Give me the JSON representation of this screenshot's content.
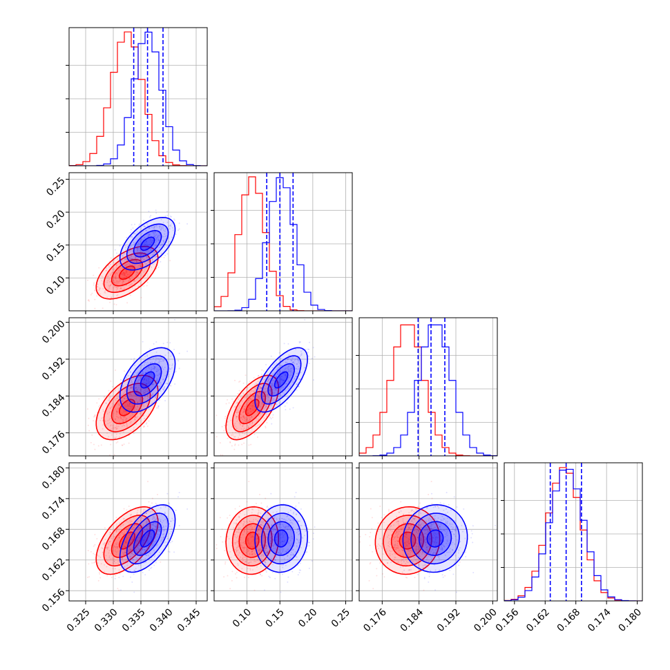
{
  "colors": {
    "red": "#ff0000",
    "blue": "#0000ff",
    "grid": "#b0b0b0",
    "frame": "#000000"
  },
  "chart_data": {
    "type": "corner",
    "parameters": 4,
    "grid": true,
    "samples": [
      {
        "color": "#ff0000",
        "mean": [
          0.3325,
          0.108,
          0.1815,
          0.1658
        ],
        "sd": [
          0.0028,
          0.02,
          0.0035,
          0.0033
        ],
        "corr": [
          [
            1,
            0.55,
            0.5,
            0.55
          ],
          [
            0.55,
            1,
            0.6,
            0.05
          ],
          [
            0.5,
            0.6,
            1,
            0.05
          ],
          [
            0.55,
            0.05,
            0.05,
            1
          ]
        ]
      },
      {
        "color": "#0000ff",
        "mean": [
          0.3362,
          0.152,
          0.1875,
          0.1662
        ],
        "sd": [
          0.0025,
          0.02,
          0.0035,
          0.0033
        ],
        "corr": [
          [
            1,
            0.55,
            0.5,
            0.55
          ],
          [
            0.55,
            1,
            0.65,
            0.05
          ],
          [
            0.5,
            0.65,
            1,
            0.05
          ],
          [
            0.55,
            0.05,
            0.05,
            1
          ]
        ]
      }
    ],
    "quantile_lines": [
      [
        0.3337,
        0.3362,
        0.339
      ],
      [
        0.13,
        0.15,
        0.17
      ],
      [
        0.1838,
        0.1866,
        0.1896
      ],
      [
        0.163,
        0.1661,
        0.1691
      ]
    ],
    "axes": [
      {
        "range": [
          0.322,
          0.347
        ],
        "ticks": [
          0.325,
          0.33,
          0.335,
          0.34,
          0.345
        ],
        "ticklabels": [
          "0.325",
          "0.330",
          "0.335",
          "0.340",
          "0.345"
        ]
      },
      {
        "range": [
          0.05,
          0.26
        ],
        "ticks": [
          0.1,
          0.15,
          0.2,
          0.25
        ],
        "ticklabels": [
          "0.10",
          "0.15",
          "0.20",
          "0.25"
        ]
      },
      {
        "range": [
          0.171,
          0.201
        ],
        "ticks": [
          0.176,
          0.184,
          0.192,
          0.2
        ],
        "ticklabels": [
          "0.176",
          "0.184",
          "0.192",
          "0.200"
        ]
      },
      {
        "range": [
          0.154,
          0.181
        ],
        "ticks": [
          0.156,
          0.162,
          0.168,
          0.174,
          0.18
        ],
        "ticklabels": [
          "0.156",
          "0.162",
          "0.168",
          "0.174",
          "0.180"
        ]
      }
    ]
  }
}
